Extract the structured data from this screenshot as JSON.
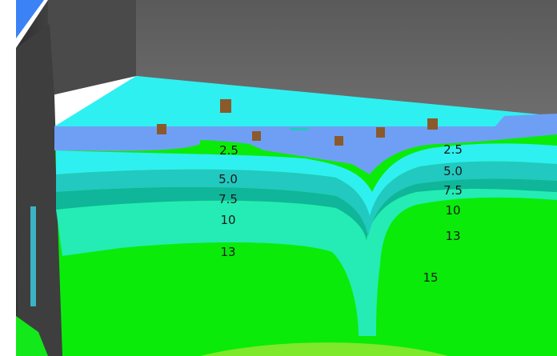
{
  "view": {
    "type": "3d-slice-view",
    "colors": {
      "background": "#ffffff",
      "back_wall": "#5d5d5d",
      "left_wall": "#3c3c3c",
      "surface_top": "#2ff0f0",
      "band_low": "#6f9ff5",
      "band_2_5": "#2ff0f0",
      "band_5_0": "#22c9c0",
      "band_7_5": "#0fb69a",
      "band_10": "#24ecb4",
      "band_13": "#1df062",
      "band_15": "#0aeb0a"
    }
  },
  "contour_labels": {
    "left": [
      "2.5",
      "5.0",
      "7.5",
      "10",
      "13"
    ],
    "right": [
      "2.5",
      "5.0",
      "7.5",
      "10",
      "13",
      "15"
    ]
  }
}
